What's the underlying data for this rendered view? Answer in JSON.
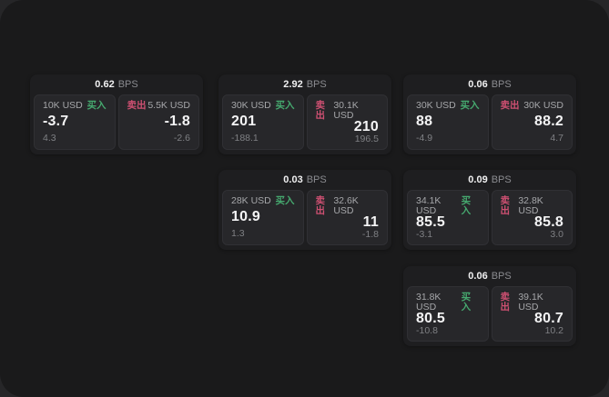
{
  "labels": {
    "bps_suffix": "BPS",
    "buy": "买入",
    "sell": "卖出"
  },
  "colors": {
    "background_outer": "#262628",
    "surface": "#1a1a1b",
    "card": "#1e1e20",
    "panel": "#27272a",
    "buy_green": "#46a96f",
    "sell_red": "#ce5072",
    "value_white": "#f4f4f5",
    "muted_gray": "#7f8084"
  },
  "cards": [
    {
      "row": 0,
      "col": 0,
      "bps": "0.62",
      "buy": {
        "amount": "10K USD",
        "price": "-3.7",
        "delta": "4.3"
      },
      "sell": {
        "amount": "5.5K USD",
        "price": "-1.8",
        "delta": "-2.6"
      }
    },
    {
      "row": 0,
      "col": 1,
      "bps": "2.92",
      "buy": {
        "amount": "30K USD",
        "price": "201",
        "delta": "-188.1"
      },
      "sell": {
        "amount": "30.1K USD",
        "price": "210",
        "delta": "196.5"
      }
    },
    {
      "row": 0,
      "col": 2,
      "bps": "0.06",
      "buy": {
        "amount": "30K USD",
        "price": "88",
        "delta": "-4.9"
      },
      "sell": {
        "amount": "30K USD",
        "price": "88.2",
        "delta": "4.7"
      }
    },
    {
      "row": 1,
      "col": 1,
      "bps": "0.03",
      "buy": {
        "amount": "28K USD",
        "price": "10.9",
        "delta": "1.3"
      },
      "sell": {
        "amount": "32.6K USD",
        "price": "11",
        "delta": "-1.8"
      }
    },
    {
      "row": 1,
      "col": 2,
      "bps": "0.09",
      "buy": {
        "amount": "34.1K USD",
        "price": "85.5",
        "delta": "-3.1"
      },
      "sell": {
        "amount": "32.8K USD",
        "price": "85.8",
        "delta": "3.0"
      }
    },
    {
      "row": 2,
      "col": 2,
      "bps": "0.06",
      "buy": {
        "amount": "31.8K USD",
        "price": "80.5",
        "delta": "-10.8"
      },
      "sell": {
        "amount": "39.1K USD",
        "price": "80.7",
        "delta": "10.2"
      }
    }
  ]
}
